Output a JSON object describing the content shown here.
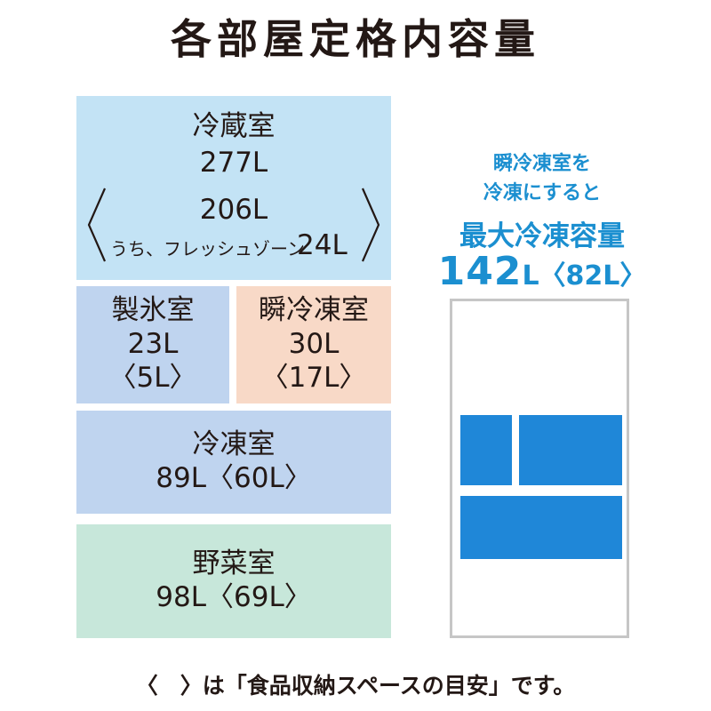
{
  "title": "各部屋定格内容量",
  "compartments": {
    "fridge": {
      "label": "冷蔵室",
      "total": "277L",
      "inner": "206L",
      "fresh_label": "うち、フレッシュゾーン",
      "fresh_value": "24L"
    },
    "ice": {
      "label": "製氷室",
      "total": "23L",
      "inner": "〈5L〉"
    },
    "instant": {
      "label": "瞬冷凍室",
      "total": "30L",
      "inner": "〈17L〉"
    },
    "freezer": {
      "label": "冷凍室",
      "capacity": "89L〈60L〉"
    },
    "vegetable": {
      "label": "野菜室",
      "capacity": "98L〈69L〉"
    }
  },
  "side": {
    "line1": "瞬冷凍室を",
    "line2": "冷凍にすると",
    "max_label": "最大冷凍容量",
    "max_value": "142",
    "max_unit": "L〈82L〉"
  },
  "footnote": "〈　〉は「食品収納スペースの目安」です。",
  "colors": {
    "fridge": "#c3e3f5",
    "ice": "#bfd4ef",
    "instant": "#f8d9c7",
    "freezer": "#bfd4ef",
    "vegetable": "#c7e7da",
    "accent_blue": "#1b8fd0",
    "block_blue": "#1f87d8"
  }
}
